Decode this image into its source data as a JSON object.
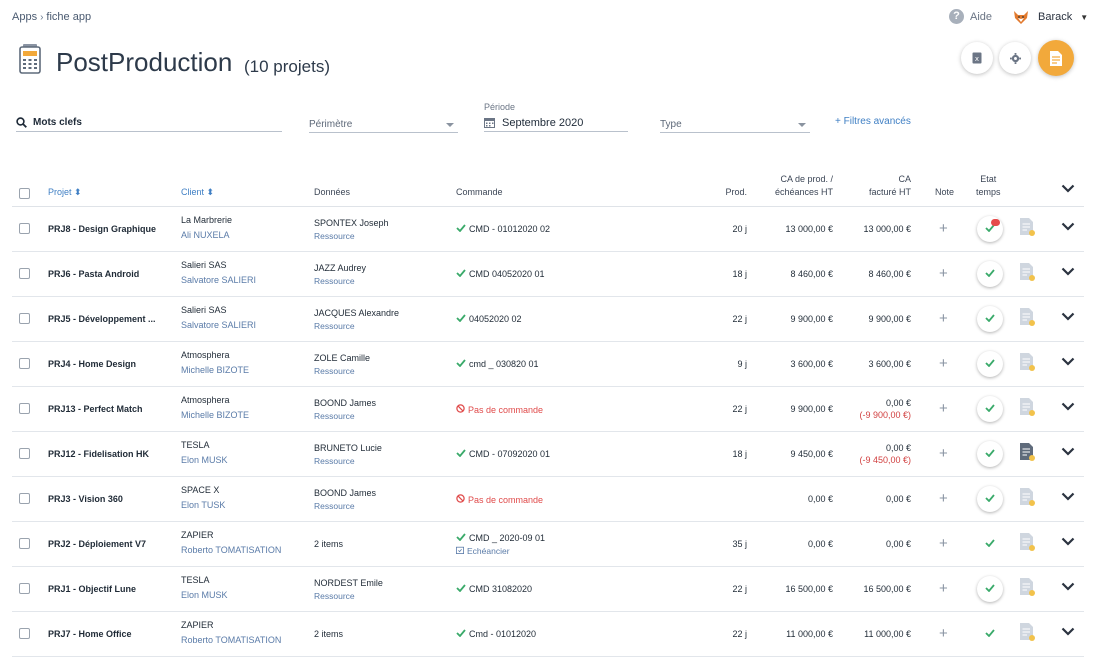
{
  "breadcrumb": {
    "root": "Apps",
    "current": "fiche app"
  },
  "header": {
    "help_label": "Aide",
    "user_name": "Barack"
  },
  "page": {
    "title": "PostProduction",
    "subtitle": "(10 projets)"
  },
  "filters": {
    "keywords_placeholder": "Mots clefs",
    "perimetre_label": "Périmètre",
    "periode_label": "Période",
    "periode_value": "Septembre 2020",
    "type_label": "Type",
    "advanced_label": "+ Filtres avancés"
  },
  "columns": {
    "projet": "Projet",
    "client": "Client",
    "donnees": "Données",
    "commande": "Commande",
    "prod": "Prod.",
    "ca_prod_1": "CA de prod. /",
    "ca_prod_2": "échéances HT",
    "ca_fact_1": "CA",
    "ca_fact_2": "facturé HT",
    "note": "Note",
    "etat_1": "Etat",
    "etat_2": "temps"
  },
  "rows": [
    {
      "projet": "PRJ8 - Design Graphique",
      "client": "La Marbrerie",
      "contact": "Ali NUXELA",
      "donnees": "SPONTEX Joseph",
      "donnees_type": "Ressource",
      "commande": "CMD - 01012020 02",
      "prod": "20 j",
      "ca_prod": "13 000,00 €",
      "ca_fact": "13 000,00 €"
    },
    {
      "projet": "PRJ6 - Pasta Android",
      "client": "Salieri SAS",
      "contact": "Salvatore SALIERI",
      "donnees": "JAZZ Audrey",
      "donnees_type": "Ressource",
      "commande": "CMD 04052020 01",
      "prod": "18 j",
      "ca_prod": "8 460,00 €",
      "ca_fact": "8 460,00 €"
    },
    {
      "projet": "PRJ5 - Développement ...",
      "client": "Salieri SAS",
      "contact": "Salvatore SALIERI",
      "donnees": "JACQUES Alexandre",
      "donnees_type": "Ressource",
      "commande": "04052020 02",
      "prod": "22 j",
      "ca_prod": "9 900,00 €",
      "ca_fact": "9 900,00 €"
    },
    {
      "projet": "PRJ4 - Home Design",
      "client": "Atmosphera",
      "contact": "Michelle BIZOTE",
      "donnees": "ZOLE Camille",
      "donnees_type": "Ressource",
      "commande": "cmd _ 030820 01",
      "prod": "9 j",
      "ca_prod": "3 600,00 €",
      "ca_fact": "3 600,00 €"
    },
    {
      "projet": "PRJ13 - Perfect Match",
      "client": "Atmosphera",
      "contact": "Michelle BIZOTE",
      "donnees": "BOOND James",
      "donnees_type": "Ressource",
      "commande": "Pas de commande",
      "prod": "22 j",
      "ca_prod": "9 900,00 €",
      "ca_fact": "0,00 €",
      "ca_fact_delta": "(-9 900,00 €)"
    },
    {
      "projet": "PRJ12 - Fidelisation HK",
      "client": "TESLA",
      "contact": "Elon MUSK",
      "donnees": "BRUNETO Lucie",
      "donnees_type": "Ressource",
      "commande": "CMD - 07092020 01",
      "prod": "18 j",
      "ca_prod": "9 450,00 €",
      "ca_fact": "0,00 €",
      "ca_fact_delta": "(-9 450,00 €)"
    },
    {
      "projet": "PRJ3 - Vision 360",
      "client": "SPACE X",
      "contact": "Elon TUSK",
      "donnees": "BOOND James",
      "donnees_type": "Ressource",
      "commande": "Pas de commande",
      "prod": "",
      "ca_prod": "0,00 €",
      "ca_fact": "0,00 €"
    },
    {
      "projet": "PRJ2 - Déploiement V7",
      "client": "ZAPIER",
      "contact": "Roberto TOMATISATION",
      "donnees": "2 items",
      "commande": "CMD _ 2020-09 01",
      "commande_sub": "Echéancier",
      "prod": "35 j",
      "ca_prod": "0,00 €",
      "ca_fact": "0,00 €"
    },
    {
      "projet": "PRJ1 - Objectif Lune",
      "client": "TESLA",
      "contact": "Elon MUSK",
      "donnees": "NORDEST Emile",
      "donnees_type": "Ressource",
      "commande": "CMD 31082020",
      "prod": "22 j",
      "ca_prod": "16 500,00 €",
      "ca_fact": "16 500,00 €"
    },
    {
      "projet": "PRJ7 - Home Office",
      "client": "ZAPIER",
      "contact": "Roberto TOMATISATION",
      "donnees": "2 items",
      "commande": "Cmd - 01012020",
      "prod": "22 j",
      "ca_prod": "11 000,00 €",
      "ca_fact": "11 000,00 €"
    }
  ],
  "colors": {
    "accent_orange": "#f2a93b",
    "link_blue": "#3f7fc4",
    "ok_green": "#3aaa6a",
    "error_red": "#e04b4b"
  }
}
